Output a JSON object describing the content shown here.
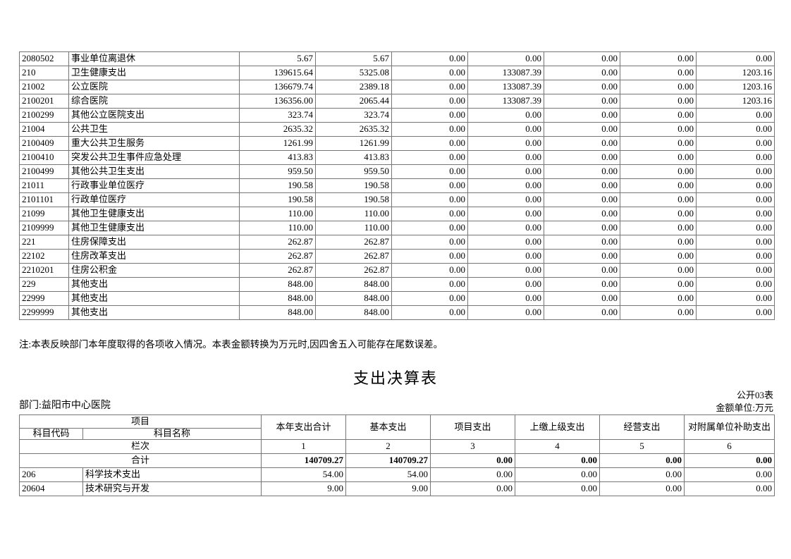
{
  "income_table": {
    "note": "注:本表反映部门本年度取得的各项收入情况。本表金额转换为万元时,因四舍五入可能存在尾数误差。",
    "rows": [
      {
        "code": "2080502",
        "name": "事业单位离退休",
        "values": [
          "5.67",
          "5.67",
          "0.00",
          "0.00",
          "0.00",
          "0.00",
          "0.00"
        ]
      },
      {
        "code": "210",
        "name": "卫生健康支出",
        "values": [
          "139615.64",
          "5325.08",
          "0.00",
          "133087.39",
          "0.00",
          "0.00",
          "1203.16"
        ]
      },
      {
        "code": "21002",
        "name": "公立医院",
        "values": [
          "136679.74",
          "2389.18",
          "0.00",
          "133087.39",
          "0.00",
          "0.00",
          "1203.16"
        ]
      },
      {
        "code": "2100201",
        "name": "综合医院",
        "values": [
          "136356.00",
          "2065.44",
          "0.00",
          "133087.39",
          "0.00",
          "0.00",
          "1203.16"
        ]
      },
      {
        "code": "2100299",
        "name": "其他公立医院支出",
        "values": [
          "323.74",
          "323.74",
          "0.00",
          "0.00",
          "0.00",
          "0.00",
          "0.00"
        ]
      },
      {
        "code": "21004",
        "name": "公共卫生",
        "values": [
          "2635.32",
          "2635.32",
          "0.00",
          "0.00",
          "0.00",
          "0.00",
          "0.00"
        ]
      },
      {
        "code": "2100409",
        "name": "重大公共卫生服务",
        "values": [
          "1261.99",
          "1261.99",
          "0.00",
          "0.00",
          "0.00",
          "0.00",
          "0.00"
        ]
      },
      {
        "code": "2100410",
        "name": "突发公共卫生事件应急处理",
        "values": [
          "413.83",
          "413.83",
          "0.00",
          "0.00",
          "0.00",
          "0.00",
          "0.00"
        ]
      },
      {
        "code": "2100499",
        "name": "其他公共卫生支出",
        "values": [
          "959.50",
          "959.50",
          "0.00",
          "0.00",
          "0.00",
          "0.00",
          "0.00"
        ]
      },
      {
        "code": "21011",
        "name": "行政事业单位医疗",
        "values": [
          "190.58",
          "190.58",
          "0.00",
          "0.00",
          "0.00",
          "0.00",
          "0.00"
        ]
      },
      {
        "code": "2101101",
        "name": "行政单位医疗",
        "values": [
          "190.58",
          "190.58",
          "0.00",
          "0.00",
          "0.00",
          "0.00",
          "0.00"
        ]
      },
      {
        "code": "21099",
        "name": "其他卫生健康支出",
        "values": [
          "110.00",
          "110.00",
          "0.00",
          "0.00",
          "0.00",
          "0.00",
          "0.00"
        ]
      },
      {
        "code": "2109999",
        "name": "其他卫生健康支出",
        "values": [
          "110.00",
          "110.00",
          "0.00",
          "0.00",
          "0.00",
          "0.00",
          "0.00"
        ]
      },
      {
        "code": "221",
        "name": "住房保障支出",
        "values": [
          "262.87",
          "262.87",
          "0.00",
          "0.00",
          "0.00",
          "0.00",
          "0.00"
        ]
      },
      {
        "code": "22102",
        "name": "住房改革支出",
        "values": [
          "262.87",
          "262.87",
          "0.00",
          "0.00",
          "0.00",
          "0.00",
          "0.00"
        ]
      },
      {
        "code": "2210201",
        "name": "住房公积金",
        "values": [
          "262.87",
          "262.87",
          "0.00",
          "0.00",
          "0.00",
          "0.00",
          "0.00"
        ]
      },
      {
        "code": "229",
        "name": "其他支出",
        "values": [
          "848.00",
          "848.00",
          "0.00",
          "0.00",
          "0.00",
          "0.00",
          "0.00"
        ]
      },
      {
        "code": "22999",
        "name": "其他支出",
        "values": [
          "848.00",
          "848.00",
          "0.00",
          "0.00",
          "0.00",
          "0.00",
          "0.00"
        ]
      },
      {
        "code": "2299999",
        "name": "其他支出",
        "values": [
          "848.00",
          "848.00",
          "0.00",
          "0.00",
          "0.00",
          "0.00",
          "0.00"
        ]
      }
    ]
  },
  "expenditure": {
    "title": "支出决算表",
    "sheet_label": "公开03表",
    "department_label": "部门:益阳市中心医院",
    "unit_label": "金额单位:万元",
    "header": {
      "project": "项目",
      "code": "科目代码",
      "name": "科目名称",
      "columns": [
        "本年支出合计",
        "基本支出",
        "项目支出",
        "上缴上级支出",
        "经营支出",
        "对附属单位补助支出"
      ]
    },
    "column_index_label": "栏次",
    "column_indices": [
      "1",
      "2",
      "3",
      "4",
      "5",
      "6"
    ],
    "total_label": "合计",
    "total_values": [
      "140709.27",
      "140709.27",
      "0.00",
      "0.00",
      "0.00",
      "0.00"
    ],
    "rows": [
      {
        "code": "206",
        "name": "科学技术支出",
        "values": [
          "54.00",
          "54.00",
          "0.00",
          "0.00",
          "0.00",
          "0.00"
        ]
      },
      {
        "code": "20604",
        "name": "技术研究与开发",
        "values": [
          "9.00",
          "9.00",
          "0.00",
          "0.00",
          "0.00",
          "0.00"
        ]
      }
    ]
  }
}
